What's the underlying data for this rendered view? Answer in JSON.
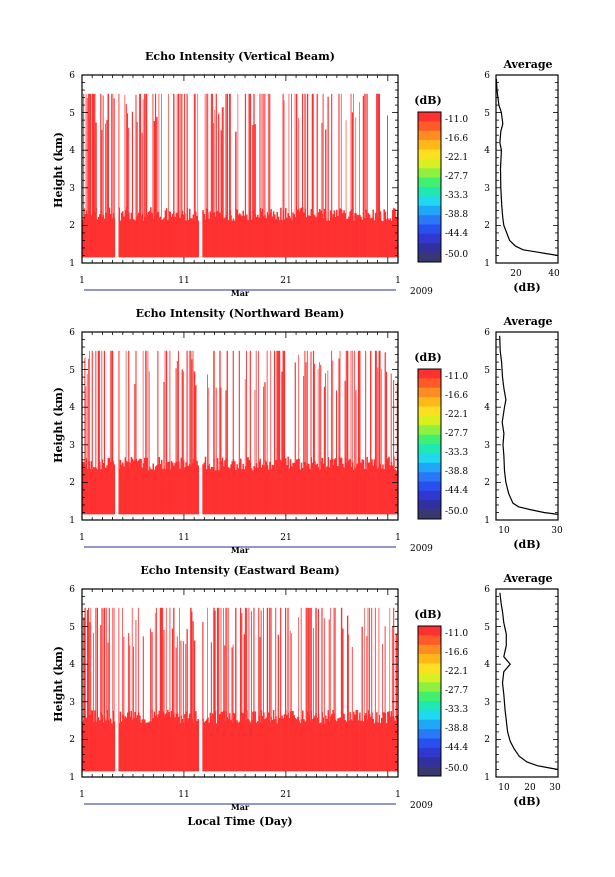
{
  "figure": {
    "xlabel": "Local Time (Day)",
    "month_label": "Mar",
    "year_label": "2009",
    "x_ticks": [
      "1",
      "11",
      "21",
      "1"
    ],
    "y_ticks": [
      "1",
      "2",
      "3",
      "4",
      "5",
      "6"
    ],
    "ylabel": "Height (km)",
    "colorbar_unit": "(dB)",
    "colorbar_ticks": [
      "-11.0",
      "-16.6",
      "-22.1",
      "-27.7",
      "-33.3",
      "-38.8",
      "-44.4",
      "-50.0"
    ],
    "colorbar_colors": [
      "#ff3030",
      "#ff5a28",
      "#ff8c20",
      "#ffb818",
      "#ffe020",
      "#d8f020",
      "#90f040",
      "#40f070",
      "#20e8b0",
      "#20d8f0",
      "#20a8f8",
      "#2878f8",
      "#2850f0",
      "#3038d0",
      "#3030a0",
      "#383870"
    ],
    "echo_color": "#ff3030",
    "avg_title": "Average",
    "avg_xlabel": "(dB)"
  },
  "chart_data": [
    {
      "type": "heatmap",
      "title": "Echo Intensity (Vertical Beam)",
      "xlabel": "",
      "ylabel": "Height (km)",
      "x_range_days": [
        1,
        32
      ],
      "ylim": [
        1,
        6
      ],
      "echo_top_km": 5.5,
      "dense_layer_top_km": 2.3,
      "data_gaps_days": [
        [
          4.2,
          4.5
        ],
        [
          12.4,
          12.7
        ]
      ],
      "color_scale_db": [
        -50.0,
        -11.0
      ]
    },
    {
      "type": "line",
      "title": "Average",
      "xlabel": "(dB)",
      "ylabel": "",
      "x_ticks": [
        "20",
        "40"
      ],
      "xlim": [
        10,
        42
      ],
      "ylim": [
        1,
        6
      ],
      "points": [
        [
          42,
          1.2
        ],
        [
          36,
          1.25
        ],
        [
          30,
          1.3
        ],
        [
          24,
          1.35
        ],
        [
          20,
          1.45
        ],
        [
          17,
          1.6
        ],
        [
          15.5,
          1.8
        ],
        [
          14,
          2.0
        ],
        [
          13.5,
          2.2
        ],
        [
          13,
          2.5
        ],
        [
          12.5,
          3.0
        ],
        [
          12.3,
          3.5
        ],
        [
          12.8,
          4.0
        ],
        [
          12,
          4.2
        ],
        [
          12.5,
          4.5
        ],
        [
          13.5,
          4.7
        ],
        [
          12.8,
          5.0
        ],
        [
          11.5,
          5.2
        ],
        [
          11,
          5.4
        ],
        [
          10.5,
          5.6
        ],
        [
          10.2,
          5.9
        ]
      ]
    },
    {
      "type": "heatmap",
      "title": "Echo Intensity (Northward Beam)",
      "xlabel": "",
      "ylabel": "Height (km)",
      "x_range_days": [
        1,
        32
      ],
      "ylim": [
        1,
        6
      ],
      "echo_top_km": 5.5,
      "dense_layer_top_km": 2.5,
      "data_gaps_days": [
        [
          4.2,
          4.5
        ],
        [
          12.4,
          12.7
        ]
      ],
      "color_scale_db": [
        -50.0,
        -11.0
      ]
    },
    {
      "type": "line",
      "title": "Average",
      "xlabel": "(dB)",
      "ylabel": "",
      "x_ticks": [
        "10",
        "30"
      ],
      "xlim": [
        8,
        30
      ],
      "ylim": [
        1,
        6
      ],
      "points": [
        [
          30,
          1.15
        ],
        [
          25,
          1.2
        ],
        [
          20,
          1.28
        ],
        [
          16,
          1.35
        ],
        [
          14,
          1.45
        ],
        [
          12.5,
          1.7
        ],
        [
          11.5,
          2.0
        ],
        [
          11,
          2.3
        ],
        [
          10.8,
          2.7
        ],
        [
          10.5,
          3.0
        ],
        [
          10.8,
          3.3
        ],
        [
          10.2,
          3.6
        ],
        [
          11,
          4.0
        ],
        [
          11.5,
          4.2
        ],
        [
          10.8,
          4.5
        ],
        [
          10.3,
          4.8
        ],
        [
          10,
          5.2
        ],
        [
          9.5,
          5.5
        ],
        [
          9.3,
          5.9
        ]
      ]
    },
    {
      "type": "heatmap",
      "title": "Echo Intensity (Eastward Beam)",
      "xlabel": "Local Time (Day)",
      "ylabel": "Height (km)",
      "x_range_days": [
        1,
        32
      ],
      "ylim": [
        1,
        6
      ],
      "echo_top_km": 5.5,
      "dense_layer_top_km": 2.6,
      "data_gaps_days": [
        [
          4.2,
          4.5
        ],
        [
          12.4,
          12.7
        ]
      ],
      "color_scale_db": [
        -50.0,
        -11.0
      ]
    },
    {
      "type": "line",
      "title": "Average",
      "xlabel": "(dB)",
      "ylabel": "",
      "x_ticks": [
        "10",
        "20",
        "30"
      ],
      "xlim": [
        8,
        32
      ],
      "ylim": [
        1,
        6
      ],
      "points": [
        [
          32,
          1.2
        ],
        [
          28,
          1.25
        ],
        [
          24,
          1.3
        ],
        [
          20,
          1.4
        ],
        [
          17,
          1.55
        ],
        [
          15,
          1.75
        ],
        [
          13.5,
          1.95
        ],
        [
          12.5,
          2.2
        ],
        [
          12,
          2.5
        ],
        [
          11.5,
          2.8
        ],
        [
          11,
          3.2
        ],
        [
          10.5,
          3.5
        ],
        [
          11,
          3.8
        ],
        [
          13.5,
          4.0
        ],
        [
          11,
          4.2
        ],
        [
          12,
          4.5
        ],
        [
          12,
          4.8
        ],
        [
          11,
          5.1
        ],
        [
          10.5,
          5.4
        ],
        [
          10,
          5.6
        ],
        [
          9.5,
          5.9
        ]
      ]
    }
  ]
}
